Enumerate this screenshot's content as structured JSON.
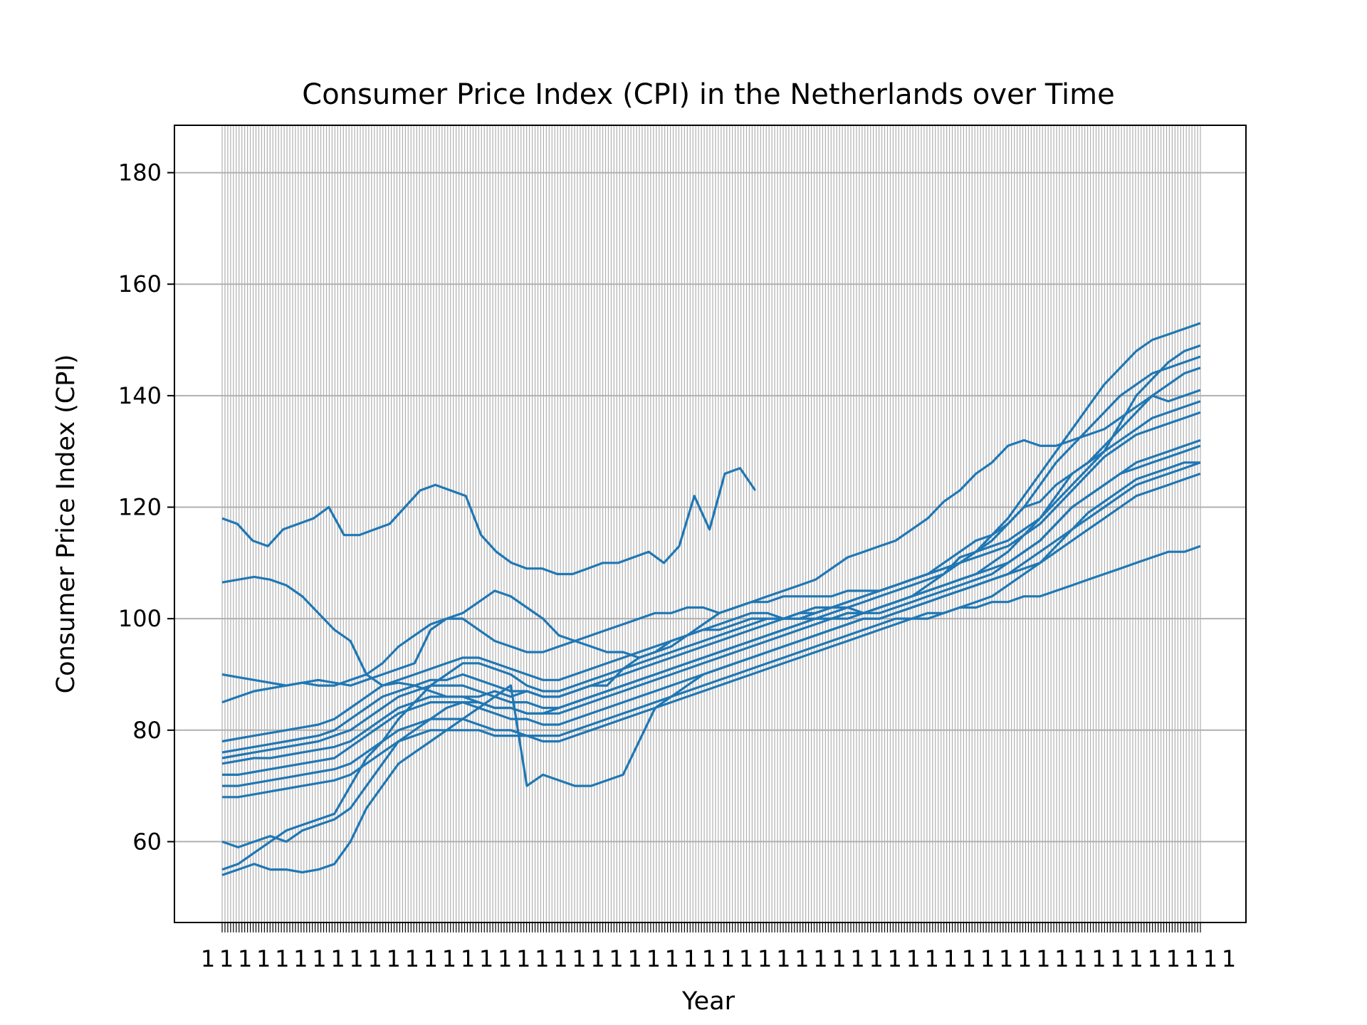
{
  "chart_data": {
    "type": "line",
    "title": "Consumer Price Index (CPI) in the Netherlands over Time",
    "xlabel": "Year",
    "ylabel": "Consumer Price Index (CPI)",
    "ylim": [
      45.5,
      188.5
    ],
    "yticks": [
      60,
      80,
      100,
      120,
      140,
      160,
      180
    ],
    "grid": true,
    "x_categories": {
      "count": 348,
      "tick_labels_overlapping": true
    },
    "line_color": "#1f77b4",
    "series": [
      {
        "values": [
          118,
          117,
          114,
          113,
          116,
          117,
          118,
          120,
          115,
          115,
          116,
          117,
          120,
          123,
          124,
          123,
          122,
          115,
          112,
          110,
          109,
          109,
          108,
          108,
          109,
          110,
          110,
          111,
          112,
          110,
          113,
          122,
          116,
          126,
          127,
          123
        ]
      },
      {
        "values": [
          106.5,
          107,
          107.5,
          107,
          106,
          104,
          101,
          98,
          96,
          90,
          88,
          88.5,
          88,
          87,
          86,
          86,
          86,
          87,
          86,
          87,
          86,
          86,
          87,
          88,
          88,
          91,
          93,
          94,
          96,
          97,
          98,
          99,
          100,
          101,
          101,
          100,
          100,
          100,
          101,
          102,
          101,
          102,
          103,
          104,
          106,
          108,
          111,
          112,
          113,
          114,
          116,
          118,
          122,
          126,
          128,
          131,
          134,
          137,
          140,
          139,
          140,
          141
        ]
      },
      {
        "values": [
          90,
          89.5,
          89,
          88.5,
          88,
          88.5,
          89,
          88.5,
          88,
          89,
          90,
          91,
          92,
          98,
          100,
          101,
          103,
          105,
          104,
          102,
          100,
          97,
          96,
          95,
          94,
          94,
          93,
          94,
          95,
          97,
          99,
          101,
          102,
          103,
          103,
          104,
          104,
          104,
          104,
          105,
          105,
          105,
          106,
          107,
          108,
          110,
          112,
          114,
          115,
          117,
          120,
          121,
          124,
          126,
          128,
          130,
          135,
          140,
          143,
          146,
          148,
          149
        ]
      },
      {
        "values": [
          85,
          86,
          87,
          87.5,
          88,
          88.5,
          88,
          88,
          89,
          90,
          92,
          95,
          97,
          99,
          100,
          100,
          98,
          96,
          95,
          94,
          94,
          95,
          96,
          97,
          98,
          99,
          100,
          101,
          101,
          102,
          102,
          101,
          102,
          103,
          104,
          105,
          106,
          107,
          109,
          111,
          112,
          113,
          114,
          116,
          118,
          121,
          123,
          126,
          128,
          131,
          132,
          131,
          131,
          132,
          133,
          134,
          136,
          138,
          140,
          142,
          144,
          145
        ]
      },
      {
        "values": [
          78,
          78.5,
          79,
          79.5,
          80,
          80.5,
          81,
          82,
          84,
          86,
          88,
          89,
          90,
          91,
          92,
          93,
          93,
          92,
          91,
          90,
          89,
          89,
          90,
          91,
          92,
          93,
          94,
          95,
          96,
          97,
          98,
          98,
          99,
          100,
          100,
          100,
          101,
          101,
          102,
          103,
          104,
          105,
          106,
          107,
          108,
          109,
          110,
          112,
          115,
          118,
          122,
          126,
          130,
          134,
          138,
          142,
          145,
          148,
          150,
          151,
          152,
          153
        ]
      },
      {
        "values": [
          76,
          76.5,
          77,
          77.5,
          78,
          78.5,
          79,
          80,
          82,
          84,
          86,
          87,
          88,
          89,
          89,
          90,
          89,
          88,
          87,
          87,
          86,
          86,
          87,
          88,
          89,
          90,
          91,
          92,
          93,
          94,
          95,
          96,
          97,
          98,
          99,
          100,
          100,
          101,
          102,
          102,
          103,
          104,
          105,
          106,
          107,
          108,
          110,
          112,
          114,
          117,
          120,
          124,
          128,
          131,
          134,
          137,
          140,
          142,
          144,
          145,
          146,
          147
        ]
      },
      {
        "values": [
          75,
          75.5,
          76,
          76.5,
          77,
          77.5,
          78,
          79,
          80,
          82,
          84,
          86,
          87,
          88,
          88,
          88,
          87,
          86,
          85,
          85,
          84,
          84,
          85,
          86,
          87,
          88,
          89,
          90,
          91,
          92,
          93,
          94,
          95,
          96,
          97,
          98,
          99,
          100,
          100,
          101,
          101,
          102,
          103,
          104,
          105,
          106,
          107,
          108,
          110,
          112,
          115,
          118,
          121,
          124,
          127,
          130,
          132,
          134,
          136,
          137,
          138,
          139
        ]
      },
      {
        "values": [
          74,
          74.5,
          75,
          75,
          75.5,
          76,
          76.5,
          77,
          78,
          80,
          82,
          84,
          85,
          86,
          86,
          86,
          85,
          84,
          84,
          83,
          83,
          83,
          84,
          85,
          86,
          87,
          88,
          89,
          90,
          91,
          92,
          93,
          94,
          95,
          96,
          97,
          98,
          99,
          100,
          100,
          101,
          101,
          102,
          103,
          104,
          105,
          106,
          107,
          108,
          110,
          112,
          114,
          117,
          120,
          122,
          124,
          126,
          128,
          129,
          130,
          131,
          132
        ]
      },
      {
        "values": [
          72,
          72,
          72.5,
          73,
          73.5,
          74,
          74.5,
          75,
          77,
          79,
          81,
          83,
          84,
          85,
          85,
          85,
          84,
          83,
          82,
          82,
          81,
          81,
          82,
          83,
          84,
          85,
          86,
          87,
          88,
          89,
          90,
          91,
          92,
          93,
          94,
          95,
          96,
          97,
          98,
          99,
          100,
          100,
          101,
          102,
          103,
          104,
          105,
          106,
          107,
          108,
          109,
          110,
          112,
          114,
          116,
          118,
          120,
          122,
          123,
          124,
          125,
          126
        ]
      },
      {
        "values": [
          70,
          70,
          70.5,
          71,
          71.5,
          72,
          72.5,
          73,
          74,
          76,
          78,
          80,
          81,
          82,
          82,
          82,
          81,
          80,
          80,
          79,
          79,
          79,
          80,
          81,
          82,
          83,
          84,
          85,
          86,
          87,
          88,
          89,
          90,
          91,
          92,
          93,
          94,
          95,
          96,
          97,
          98,
          99,
          100,
          100,
          101,
          101,
          102,
          102,
          103,
          103,
          104,
          104,
          105,
          106,
          107,
          108,
          109,
          110,
          111,
          112,
          112,
          113
        ]
      },
      {
        "values": [
          68,
          68,
          68.5,
          69,
          69.5,
          70,
          70.5,
          71,
          72,
          74,
          76,
          78,
          79,
          80,
          80,
          80,
          80,
          79,
          79,
          79,
          78,
          78,
          79,
          80,
          81,
          82,
          83,
          84,
          85,
          86,
          87,
          88,
          89,
          90,
          91,
          92,
          93,
          94,
          95,
          96,
          97,
          98,
          99,
          100,
          100,
          101,
          102,
          103,
          104,
          106,
          108,
          110,
          113,
          116,
          119,
          121,
          123,
          125,
          126,
          127,
          128,
          128
        ]
      },
      {
        "values": [
          60,
          59,
          60,
          61,
          60,
          62,
          63,
          64,
          66,
          70,
          74,
          78,
          80,
          82,
          84,
          85,
          85,
          84,
          84,
          83,
          83,
          84,
          85,
          86,
          87,
          88,
          89,
          90,
          91,
          92,
          93,
          94,
          95,
          96,
          97,
          98,
          99,
          100,
          100,
          101,
          101,
          102,
          103,
          104,
          105,
          106,
          107,
          108,
          109,
          110,
          112,
          114,
          117,
          120,
          122,
          124,
          126,
          127,
          128,
          129,
          130,
          131
        ]
      },
      {
        "values": [
          55,
          56,
          58,
          60,
          62,
          63,
          64,
          65,
          70,
          75,
          78,
          82,
          85,
          88,
          90,
          92,
          92,
          91,
          90,
          88,
          87,
          87,
          88,
          89,
          90,
          91,
          92,
          93,
          94,
          95,
          96,
          97,
          98,
          99,
          100,
          100,
          101,
          102,
          102,
          103,
          104,
          105,
          106,
          107,
          108,
          109,
          110,
          111,
          112,
          113,
          115,
          117,
          120,
          123,
          126,
          129,
          131,
          133,
          134,
          135,
          136,
          137
        ]
      },
      {
        "values": [
          54,
          55,
          56,
          55,
          55,
          54.5,
          55,
          56,
          60,
          66,
          70,
          74,
          76,
          78,
          80,
          82,
          84,
          86,
          88,
          70,
          72,
          71,
          70,
          70,
          71,
          72,
          78,
          84,
          86,
          88,
          90,
          91,
          92,
          93,
          94,
          95,
          96,
          97,
          98,
          99,
          100,
          100,
          101,
          102,
          103,
          104,
          105,
          106,
          107,
          108,
          110,
          112,
          114,
          116,
          118,
          120,
          122,
          124,
          125,
          126,
          127,
          128
        ]
      }
    ]
  }
}
